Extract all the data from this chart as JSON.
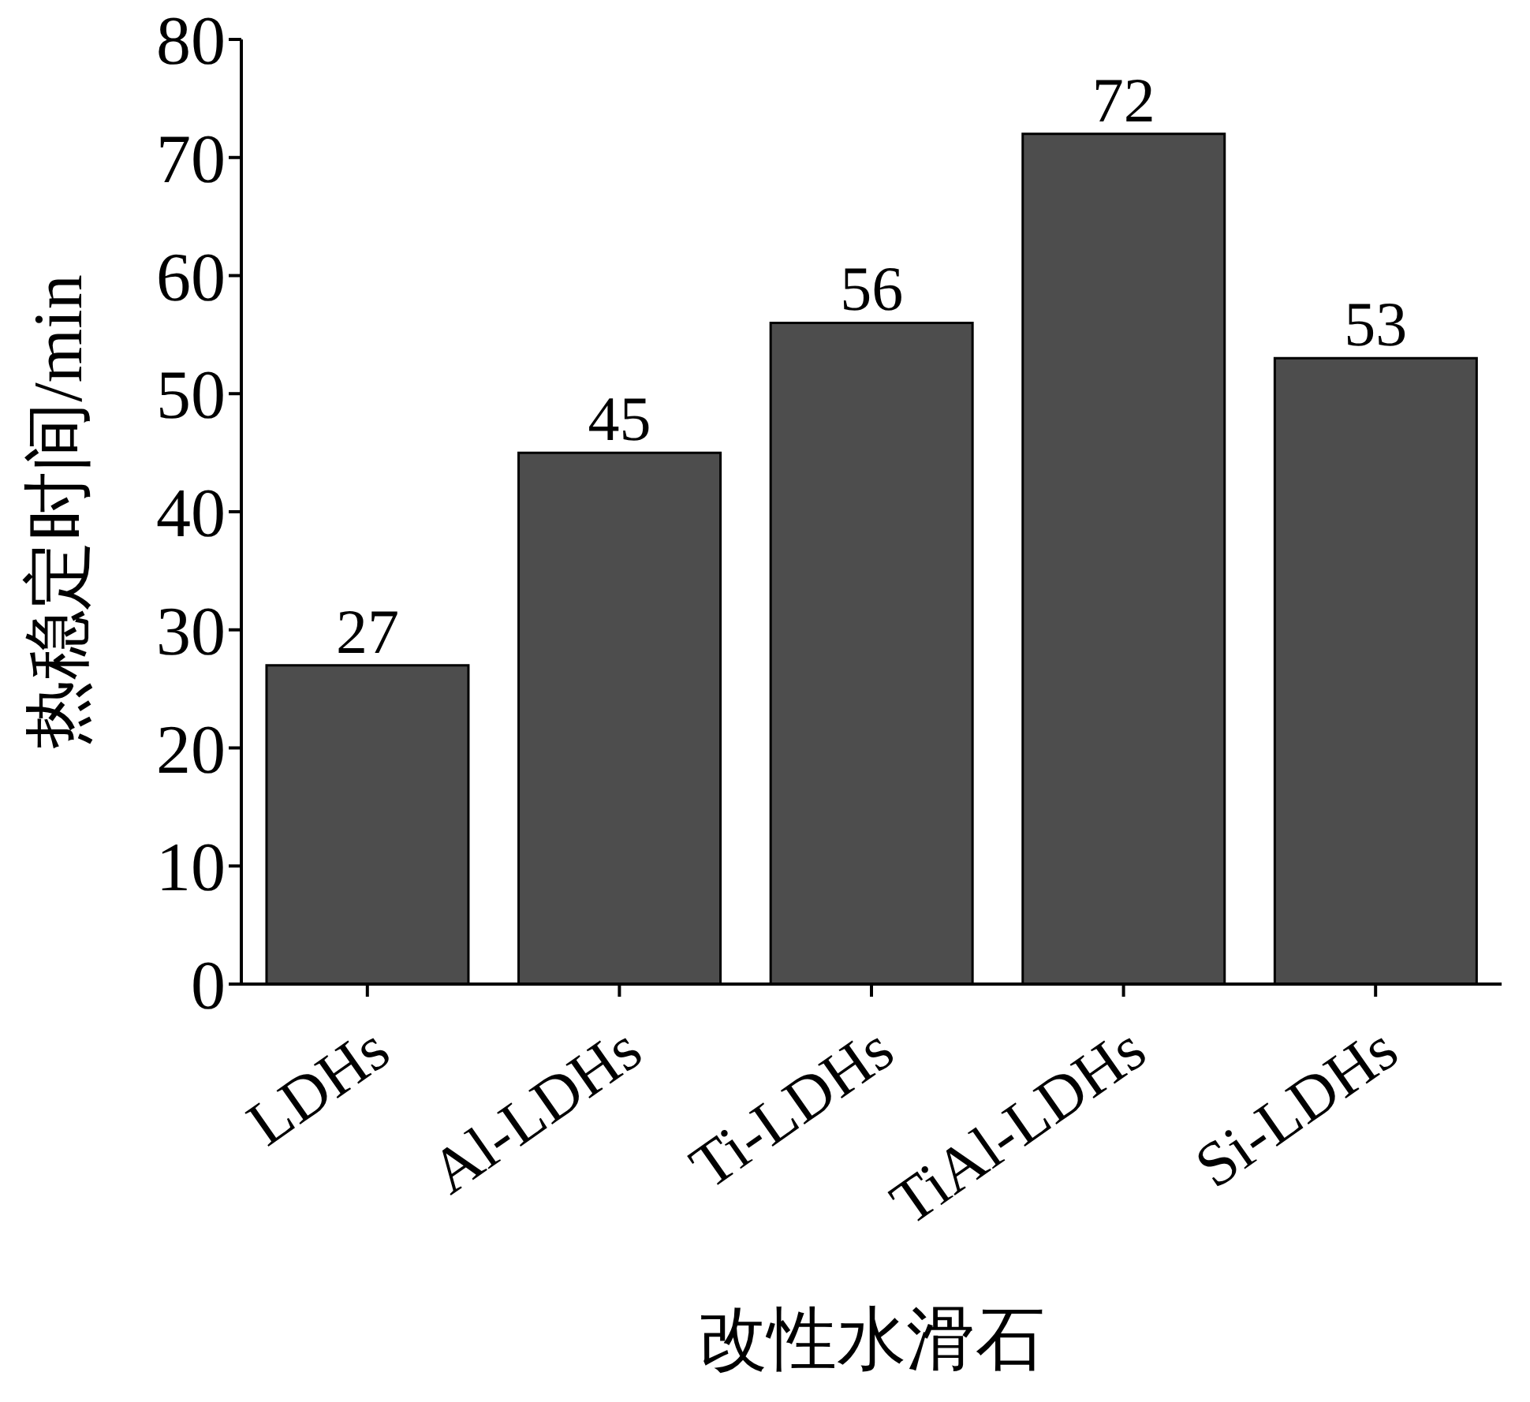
{
  "chart_data": {
    "type": "bar",
    "xlabel": "改性水滑石",
    "ylabel": "热稳定时间/min",
    "categories": [
      "LDHs",
      "Al-LDHs",
      "Ti-LDHs",
      "TiAl-LDHs",
      "Si-LDHs"
    ],
    "values": [
      27,
      45,
      56,
      72,
      53
    ],
    "color": "#4d4d4d",
    "data_labels": true,
    "ylim": [
      0,
      80
    ],
    "yticks": [
      0,
      10,
      20,
      30,
      40,
      50,
      60,
      70,
      80
    ],
    "grid": false,
    "legend": false
  }
}
